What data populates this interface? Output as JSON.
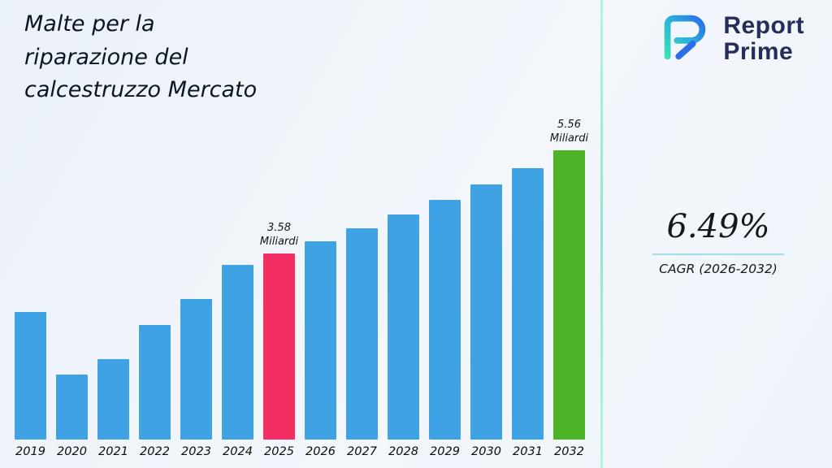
{
  "title": "Malte per la riparazione del calcestruzzo Mercato",
  "logo": {
    "name_line1": "Report",
    "name_line2": "Prime"
  },
  "stats": {
    "cagr_value": "6.49%",
    "cagr_label": "CAGR (2026-2032)"
  },
  "chart_data": {
    "type": "bar",
    "title": "Malte per la riparazione del calcestruzzo Mercato",
    "unit": "Miliardi",
    "categories": [
      "2019",
      "2020",
      "2021",
      "2022",
      "2023",
      "2024",
      "2025",
      "2026",
      "2027",
      "2028",
      "2029",
      "2030",
      "2031",
      "2032"
    ],
    "values": [
      2.45,
      1.25,
      1.55,
      2.2,
      2.7,
      3.35,
      3.58,
      3.81,
      4.06,
      4.32,
      4.6,
      4.9,
      5.22,
      5.56
    ],
    "ylim": [
      0,
      5.9
    ],
    "grid": false,
    "legend": false,
    "bar_color": "#3FA2E3",
    "highlight_colors": {
      "2025": "#F22E63",
      "2032": "#4CB527"
    },
    "annotations": [
      {
        "category": "2025",
        "lines": [
          "3.58",
          "Miliardi"
        ]
      },
      {
        "category": "2032",
        "lines": [
          "5.56",
          "Miliardi"
        ]
      }
    ]
  },
  "accents": {
    "separator": "#8AE9C7",
    "underline": "#A4DBEE"
  }
}
